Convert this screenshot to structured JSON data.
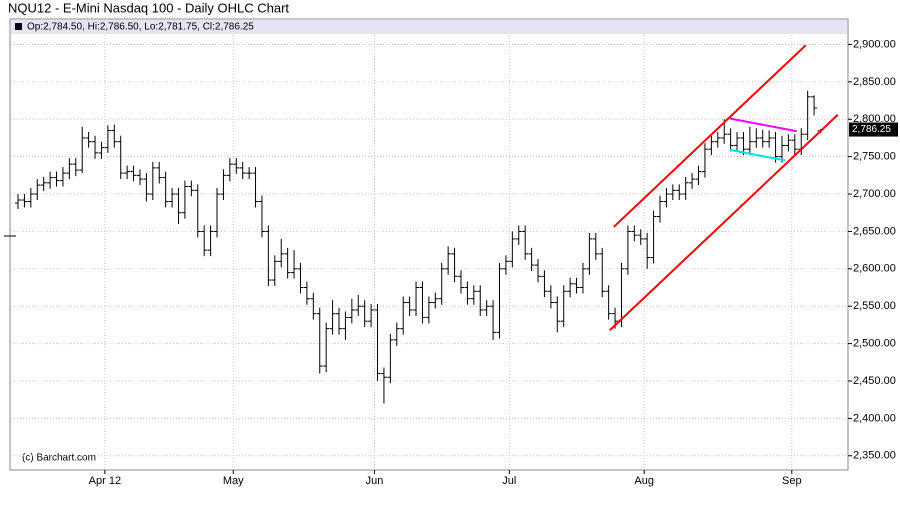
{
  "chart_data": {
    "type": "ohlc",
    "title": "NQU12 - E-Mini Nasdaq 100 - Daily OHLC Chart",
    "legend_text": "Op:2,784.50, Hi:2,786.50, Lo:2,781.75, Cl:2,786.25",
    "credit": "(c) Barchart.com",
    "last_value_label": "2,786.25",
    "color": "#000000",
    "grid": true,
    "categories": [
      null,
      null,
      null,
      null,
      null,
      null,
      null,
      null,
      null,
      null,
      null,
      null,
      null,
      null,
      "Apr 12",
      null,
      null,
      null,
      null,
      null,
      null,
      null,
      null,
      null,
      null,
      null,
      null,
      null,
      null,
      null,
      null,
      null,
      null,
      null,
      "May",
      null,
      null,
      null,
      null,
      null,
      null,
      null,
      null,
      null,
      null,
      null,
      null,
      null,
      null,
      null,
      null,
      null,
      null,
      null,
      null,
      null,
      "Jun",
      null,
      null,
      null,
      null,
      null,
      null,
      null,
      null,
      null,
      null,
      null,
      null,
      null,
      null,
      null,
      null,
      null,
      null,
      null,
      null,
      "Jul",
      null,
      null,
      null,
      null,
      null,
      null,
      null,
      null,
      null,
      null,
      null,
      null,
      null,
      null,
      null,
      null,
      null,
      null,
      null,
      null,
      "Aug",
      null,
      null,
      null,
      null,
      null,
      null,
      null,
      null,
      null,
      null,
      null,
      null,
      null,
      null,
      null,
      null,
      null,
      null,
      null,
      null,
      null,
      null,
      "Sep",
      null,
      null,
      null,
      null
    ],
    "open": [
      2688,
      2692,
      2690,
      2700,
      2712,
      2715,
      2722,
      2718,
      2728,
      2740,
      2732,
      2775,
      2770,
      2755,
      2762,
      2785,
      2770,
      2728,
      2730,
      2725,
      2720,
      2700,
      2735,
      2722,
      2690,
      2700,
      2675,
      2710,
      2705,
      2650,
      2625,
      2650,
      2700,
      2725,
      2740,
      2735,
      2728,
      2728,
      2690,
      2650,
      2585,
      2610,
      2620,
      2595,
      2600,
      2575,
      2560,
      2540,
      2470,
      2520,
      2540,
      2520,
      2535,
      2545,
      2550,
      2530,
      2545,
      2460,
      2455,
      2505,
      2520,
      2555,
      2545,
      2575,
      2535,
      2555,
      2560,
      2600,
      2620,
      2590,
      2575,
      2560,
      2570,
      2545,
      2550,
      2515,
      2600,
      2610,
      2640,
      2650,
      2620,
      2605,
      2590,
      2570,
      2555,
      2530,
      2570,
      2580,
      2575,
      2600,
      2640,
      2620,
      2570,
      2540,
      2530,
      2600,
      2650,
      2645,
      2640,
      2615,
      2670,
      2690,
      2700,
      2705,
      2700,
      2715,
      2720,
      2730,
      2760,
      2770,
      2775,
      2780,
      2765,
      2775,
      2760,
      2770,
      2775,
      2770,
      2775,
      2750,
      2765,
      2772,
      2760,
      2780,
      2830,
      2784.5
    ],
    "high": [
      2700,
      2700,
      2708,
      2720,
      2723,
      2730,
      2730,
      2736,
      2748,
      2748,
      2790,
      2783,
      2778,
      2770,
      2792,
      2793,
      2778,
      2738,
      2738,
      2733,
      2728,
      2743,
      2743,
      2730,
      2708,
      2708,
      2718,
      2718,
      2713,
      2658,
      2658,
      2708,
      2733,
      2748,
      2748,
      2743,
      2736,
      2736,
      2698,
      2658,
      2618,
      2640,
      2628,
      2625,
      2608,
      2583,
      2568,
      2548,
      2528,
      2558,
      2548,
      2543,
      2560,
      2565,
      2558,
      2553,
      2553,
      2468,
      2513,
      2528,
      2563,
      2563,
      2583,
      2583,
      2563,
      2568,
      2608,
      2630,
      2628,
      2598,
      2583,
      2578,
      2578,
      2558,
      2558,
      2608,
      2618,
      2650,
      2658,
      2658,
      2628,
      2613,
      2598,
      2578,
      2563,
      2578,
      2588,
      2588,
      2608,
      2648,
      2648,
      2628,
      2578,
      2548,
      2608,
      2658,
      2658,
      2653,
      2648,
      2678,
      2698,
      2708,
      2713,
      2713,
      2723,
      2728,
      2738,
      2768,
      2778,
      2783,
      2800,
      2788,
      2783,
      2783,
      2790,
      2788,
      2786,
      2785,
      2783,
      2778,
      2780,
      2780,
      2788,
      2838,
      2832,
      2786.5
    ],
    "low": [
      2680,
      2682,
      2682,
      2692,
      2704,
      2707,
      2710,
      2710,
      2720,
      2724,
      2728,
      2762,
      2747,
      2747,
      2755,
      2762,
      2720,
      2720,
      2717,
      2712,
      2690,
      2692,
      2714,
      2682,
      2682,
      2660,
      2667,
      2697,
      2642,
      2617,
      2617,
      2642,
      2692,
      2717,
      2727,
      2720,
      2720,
      2682,
      2642,
      2577,
      2577,
      2602,
      2587,
      2587,
      2567,
      2552,
      2532,
      2460,
      2462,
      2512,
      2512,
      2505,
      2527,
      2537,
      2522,
      2522,
      2450,
      2420,
      2447,
      2497,
      2512,
      2537,
      2537,
      2527,
      2527,
      2547,
      2552,
      2592,
      2582,
      2567,
      2552,
      2552,
      2537,
      2537,
      2505,
      2507,
      2592,
      2602,
      2632,
      2612,
      2597,
      2582,
      2562,
      2547,
      2515,
      2522,
      2562,
      2567,
      2567,
      2592,
      2612,
      2562,
      2532,
      2520,
      2522,
      2592,
      2637,
      2632,
      2600,
      2607,
      2662,
      2682,
      2692,
      2692,
      2692,
      2707,
      2712,
      2722,
      2752,
      2762,
      2767,
      2757,
      2757,
      2752,
      2752,
      2762,
      2762,
      2762,
      2742,
      2742,
      2757,
      2752,
      2752,
      2772,
      2805,
      2781.75
    ],
    "close": [
      2692,
      2690,
      2700,
      2712,
      2715,
      2722,
      2718,
      2728,
      2740,
      2732,
      2775,
      2770,
      2755,
      2762,
      2785,
      2770,
      2728,
      2730,
      2725,
      2720,
      2700,
      2735,
      2722,
      2690,
      2700,
      2675,
      2710,
      2705,
      2650,
      2625,
      2650,
      2700,
      2725,
      2740,
      2735,
      2728,
      2728,
      2690,
      2650,
      2585,
      2610,
      2620,
      2595,
      2600,
      2575,
      2560,
      2540,
      2470,
      2520,
      2540,
      2520,
      2535,
      2545,
      2550,
      2530,
      2545,
      2460,
      2455,
      2505,
      2520,
      2555,
      2545,
      2575,
      2535,
      2555,
      2560,
      2600,
      2620,
      2590,
      2575,
      2560,
      2570,
      2545,
      2550,
      2515,
      2600,
      2610,
      2640,
      2650,
      2620,
      2605,
      2590,
      2570,
      2555,
      2530,
      2570,
      2580,
      2575,
      2600,
      2640,
      2620,
      2570,
      2540,
      2530,
      2600,
      2650,
      2645,
      2640,
      2615,
      2670,
      2690,
      2700,
      2705,
      2700,
      2715,
      2720,
      2730,
      2760,
      2770,
      2775,
      2780,
      2765,
      2775,
      2760,
      2770,
      2775,
      2770,
      2775,
      2750,
      2765,
      2772,
      2760,
      2780,
      2830,
      2815,
      2786.25
    ],
    "trendlines": [
      {
        "color": "#ff0000",
        "x": [
          92.8,
          122.7
        ],
        "y": [
          2656,
          2899
        ]
      },
      {
        "color": "#ff0000",
        "x": [
          92.2,
          127.7
        ],
        "y": [
          2518,
          2806
        ]
      },
      {
        "color": "#ff00ff",
        "x": [
          110.9,
          121.3
        ],
        "y": [
          2801,
          2784
        ]
      },
      {
        "color": "#00e5ee",
        "x": [
          110.9,
          119.5
        ],
        "y": [
          2759,
          2745
        ]
      }
    ],
    "ylim": [
      2331,
      2914
    ],
    "yticks": [
      {
        "value": 2350,
        "label": "2,350.00"
      },
      {
        "value": 2400,
        "label": "2,400.00"
      },
      {
        "value": 2450,
        "label": "2,450.00"
      },
      {
        "value": 2500,
        "label": "2,500.00"
      },
      {
        "value": 2550,
        "label": "2,550.00"
      },
      {
        "value": 2600,
        "label": "2,600.00"
      },
      {
        "value": 2650,
        "label": "2,650.00"
      },
      {
        "value": 2700,
        "label": "2,700.00"
      },
      {
        "value": 2750,
        "label": "2,750.00"
      },
      {
        "value": 2800,
        "label": "2,800.00"
      },
      {
        "value": 2850,
        "label": "2,850.00"
      },
      {
        "value": 2900,
        "label": "2,900.00"
      }
    ]
  }
}
